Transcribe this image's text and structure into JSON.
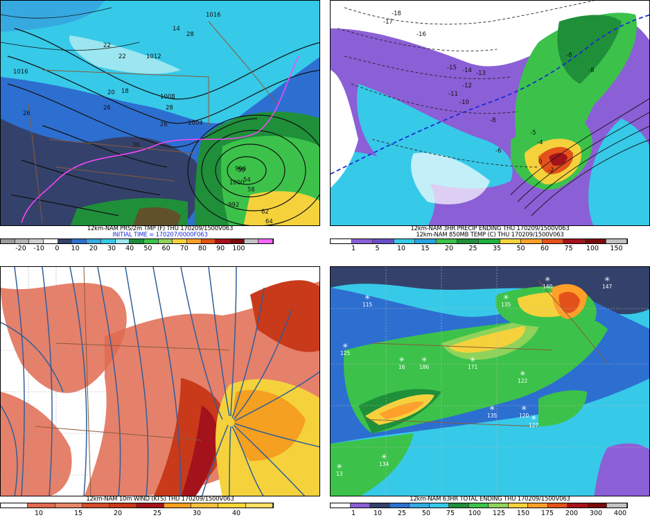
{
  "panels": {
    "top_left": {
      "caption_line1": "12km-NAM PRS/2m TMP (F) THU 170209/1500V063",
      "caption_line2": "INITIAL TIME = 170207/0000F063",
      "colorbar_ticks": [
        "-20",
        "-10",
        "0",
        "10",
        "20",
        "30",
        "40",
        "50",
        "60",
        "70",
        "80",
        "90",
        "100"
      ],
      "colorbar_colors": [
        "#9a9a9a",
        "#b4b4b4",
        "#cfcfcf",
        "#ffffff",
        "#34426b",
        "#2d6fd0",
        "#36a9e1",
        "#37c9e8",
        "#9be6f0",
        "#1f8f3a",
        "#3cc24a",
        "#8fd35a",
        "#f5d23c",
        "#ff9f2a",
        "#e3521a",
        "#a4131b",
        "#7a0a0a",
        "#c2c2c2",
        "#ff66ff"
      ],
      "isobar_labels": [
        "1016",
        "1012",
        "1008",
        "1004",
        "1000",
        "996",
        "992",
        "1016"
      ],
      "temp_labels": [
        "22",
        "22",
        "18",
        "14",
        "28",
        "26",
        "26",
        "20",
        "26",
        "28",
        "30",
        "50",
        "54",
        "58",
        "62",
        "64"
      ],
      "map_colors": {
        "dark": "#34426b",
        "mid": "#2d6fd0",
        "light": "#36a9e1",
        "cyan": "#37c9e8",
        "green": "#3cc24a",
        "darkgreen": "#1f8f3a",
        "yellow": "#f5d23c",
        "magenta": "#ff44ff"
      }
    },
    "top_right": {
      "caption_line1": "12km-NAM 3HR PRECIP ENDING THU 170209/1500V063",
      "caption_line2": "12km-NAM 850MB TEMP (C) THU 170209/1500V063",
      "colorbar_ticks": [
        "1",
        "5",
        "10",
        "15",
        "20",
        "25",
        "35",
        "50",
        "60",
        "75",
        "100",
        "150"
      ],
      "colorbar_colors": [
        "#ffffff",
        "#8b5fd6",
        "#6a4ec8",
        "#37c9e8",
        "#2aa3e0",
        "#3cc24a",
        "#1f8f3a",
        "#20b040",
        "#f5d23c",
        "#ff9f2a",
        "#e3521a",
        "#a4131b",
        "#7a0a0a",
        "#c2c2c2"
      ],
      "temp_labels": [
        "-18",
        "-17",
        "-16",
        "-15",
        "-14",
        "-13",
        "-12",
        "-11",
        "-10",
        "-8",
        "-6",
        "-5",
        "-4",
        "0",
        "-2",
        "-8",
        "-8"
      ],
      "map_colors": {
        "purple": "#8b5fd6",
        "cyan": "#37c9e8",
        "green": "#3cc24a",
        "darkgreen": "#1f8f3a",
        "yellow": "#f5d23c",
        "orange": "#e3521a",
        "red": "#a4131b"
      }
    },
    "bottom_left": {
      "caption_line1": "12km-NAM 10m WIND (KTS) THU 170209/1500V063",
      "colorbar_ticks": [
        "10",
        "15",
        "20",
        "25",
        "30",
        "40"
      ],
      "colorbar_colors": [
        "#ffffff",
        "#e06a50",
        "#e8866a",
        "#d34e2a",
        "#c83a1a",
        "#a4131b",
        "#f5a020",
        "#f5c040",
        "#ffd73a",
        "#ffe066"
      ],
      "map_colors": {
        "salmon": "#e06a50",
        "red": "#c83a1a",
        "darkred": "#a4131b",
        "yellow": "#f5d23c",
        "orange": "#f5a020",
        "streamline": "#2f5e9a"
      }
    },
    "bottom_right": {
      "caption_line1": "12km-NAM 63HR TOTAL ENDING THU 170209/1500V063",
      "colorbar_ticks": [
        "1",
        "10",
        "25",
        "50",
        "75",
        "100",
        "125",
        "150",
        "175",
        "200",
        "300",
        "400"
      ],
      "colorbar_colors": [
        "#ffffff",
        "#8b5fd6",
        "#34426b",
        "#2d6fd0",
        "#36a9e1",
        "#37c9e8",
        "#1f8f3a",
        "#3cc24a",
        "#8fd35a",
        "#f5d23c",
        "#ff9f2a",
        "#e3521a",
        "#a4131b",
        "#7a0a0a",
        "#c2c2c2"
      ],
      "station_values": [
        "115",
        "140",
        "147",
        "125",
        "135",
        "16",
        "186",
        "171",
        "122",
        "135",
        "120",
        "127",
        "134",
        "13"
      ],
      "map_colors": {
        "navy": "#34426b",
        "blue": "#2d6fd0",
        "cyan": "#37c9e8",
        "green": "#3cc24a",
        "darkgreen": "#1f8f3a",
        "yellow": "#f5d23c",
        "orange": "#ff9f2a",
        "red": "#e3521a",
        "purple": "#8b5fd6"
      }
    }
  }
}
